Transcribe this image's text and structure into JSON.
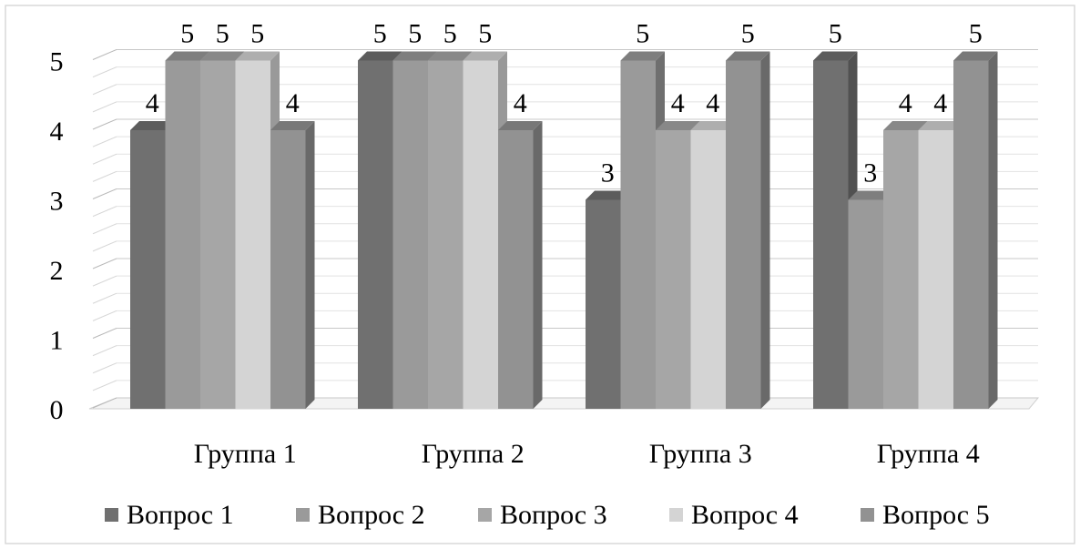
{
  "chart_data": {
    "type": "bar",
    "categories": [
      "Группа 1",
      "Группа 2",
      "Группа 3",
      "Группа 4"
    ],
    "series": [
      {
        "name": "Вопрос 1",
        "values": [
          4,
          5,
          3,
          5
        ],
        "color": "#707070"
      },
      {
        "name": "Вопрос 2",
        "values": [
          5,
          5,
          5,
          3
        ],
        "color": "#9a9a9a"
      },
      {
        "name": "Вопрос 3",
        "values": [
          5,
          5,
          4,
          4
        ],
        "color": "#a6a6a6"
      },
      {
        "name": "Вопрос 4",
        "values": [
          5,
          5,
          4,
          4
        ],
        "color": "#d4d4d4"
      },
      {
        "name": "Вопрос 5",
        "values": [
          4,
          4,
          5,
          5
        ],
        "color": "#929292"
      }
    ],
    "y_ticks": [
      "0",
      "1",
      "2",
      "3",
      "4",
      "5"
    ],
    "ylim": [
      0,
      5
    ],
    "grid": true,
    "legend_position": "bottom",
    "three_d": true
  }
}
